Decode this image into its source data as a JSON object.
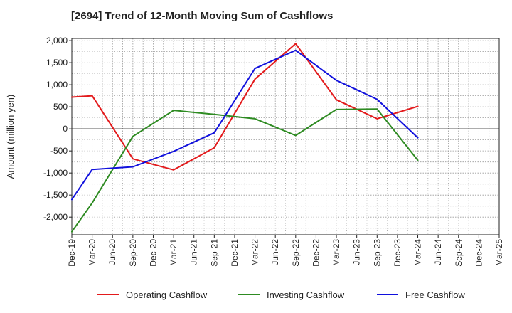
{
  "chart_data": {
    "type": "line",
    "title": "[2694]  Trend of 12-Month Moving Sum of Cashflows",
    "ylabel": "Amount (million yen)",
    "xlabel": "",
    "ylim": [
      -2400,
      2050
    ],
    "yticks": [
      2000,
      1500,
      1000,
      500,
      0,
      -500,
      -1000,
      -1500,
      -2000
    ],
    "ytick_labels": [
      "2,000",
      "1,500",
      "1,000",
      "500",
      "0",
      "-500",
      "-1,000",
      "-1,500",
      "-2,000"
    ],
    "categories": [
      "Dec-19",
      "Mar-20",
      "Jun-20",
      "Sep-20",
      "Dec-20",
      "Mar-21",
      "Jun-21",
      "Sep-21",
      "Dec-21",
      "Mar-22",
      "Jun-22",
      "Sep-22",
      "Dec-22",
      "Mar-23",
      "Jun-23",
      "Sep-23",
      "Dec-23",
      "Mar-24",
      "Jun-24",
      "Sep-24",
      "Dec-24",
      "Mar-25"
    ],
    "grid": true,
    "legend_position": "bottom",
    "series": [
      {
        "name": "Operating Cashflow",
        "color": "#e31a1c",
        "values": [
          720,
          750,
          null,
          -680,
          null,
          -930,
          null,
          -430,
          null,
          1130,
          null,
          1930,
          null,
          660,
          null,
          230,
          null,
          510,
          null,
          null,
          null,
          null
        ]
      },
      {
        "name": "Investing Cashflow",
        "color": "#2e8b22",
        "values": [
          -2330,
          -1680,
          null,
          -170,
          null,
          420,
          null,
          330,
          null,
          230,
          null,
          -150,
          null,
          440,
          null,
          450,
          null,
          -710,
          null,
          null,
          null,
          null
        ]
      },
      {
        "name": "Free Cashflow",
        "color": "#1010dd",
        "values": [
          -1600,
          -920,
          null,
          -860,
          null,
          -510,
          null,
          -90,
          null,
          1370,
          null,
          1780,
          null,
          1100,
          null,
          670,
          null,
          -200,
          null,
          null,
          null,
          null
        ]
      }
    ]
  }
}
